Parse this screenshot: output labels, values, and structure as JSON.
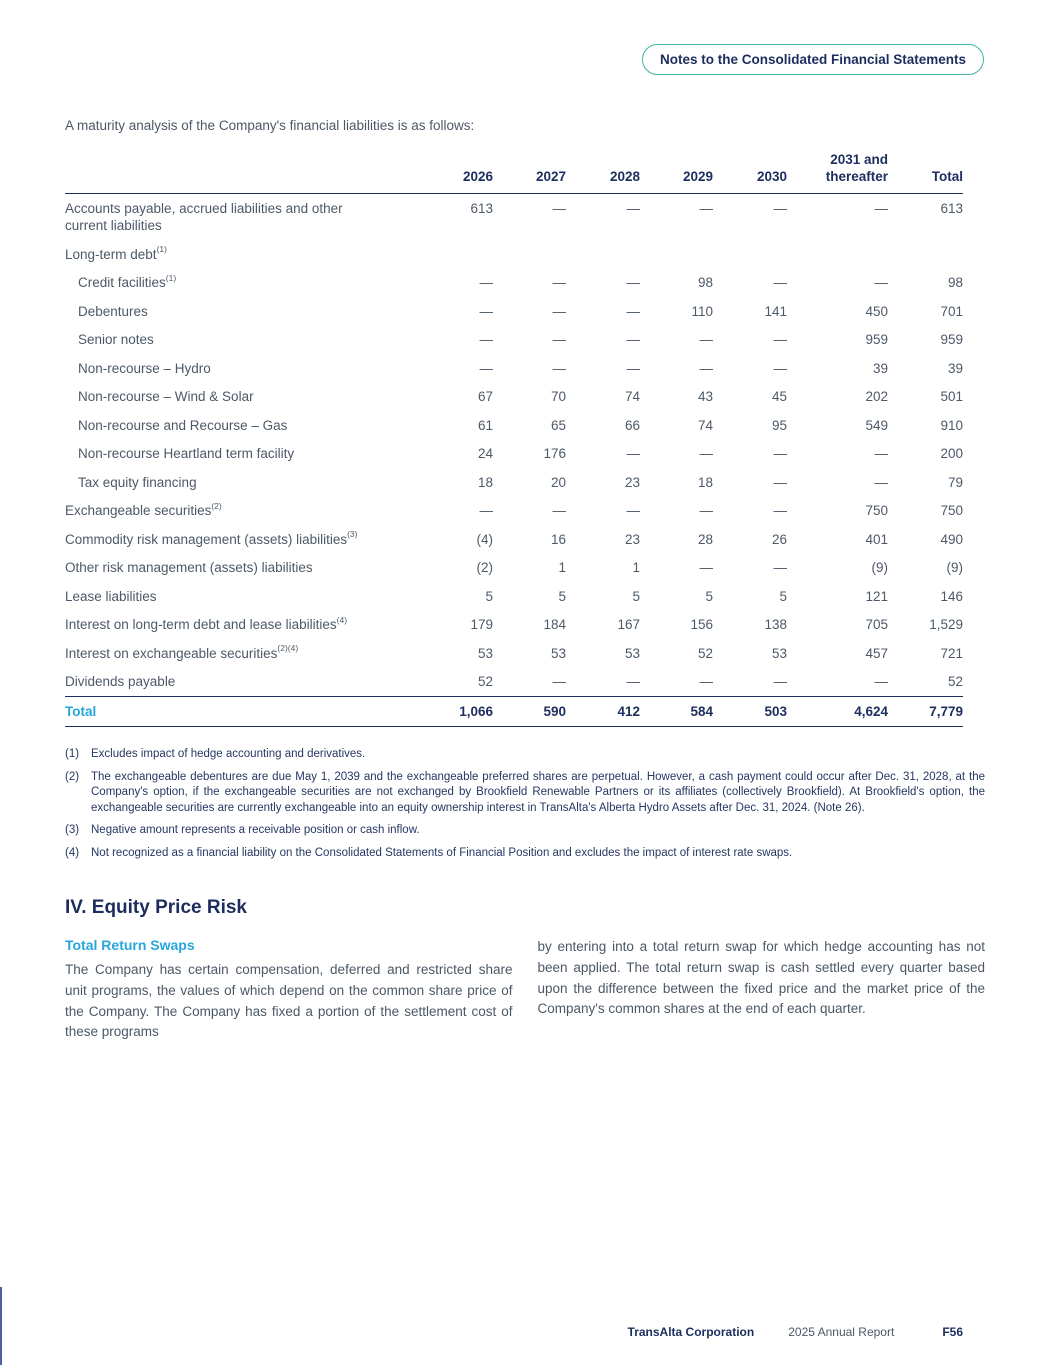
{
  "header": {
    "tag": "Notes to the Consolidated Financial Statements"
  },
  "intro": "A maturity analysis of the Company's financial liabilities is as follows:",
  "table": {
    "columns": [
      "2026",
      "2027",
      "2028",
      "2029",
      "2030",
      "2031 and thereafter",
      "Total"
    ],
    "rows": [
      {
        "label": "Accounts payable, accrued liabilities and other current liabilities",
        "sup": "",
        "indent": 0,
        "values": [
          "613",
          "—",
          "—",
          "—",
          "—",
          "—",
          "613"
        ]
      },
      {
        "label": "Long-term debt",
        "sup": "(1)",
        "indent": 0,
        "values": []
      },
      {
        "label": "Credit facilities",
        "sup": "(1)",
        "indent": 1,
        "values": [
          "—",
          "—",
          "—",
          "98",
          "—",
          "—",
          "98"
        ]
      },
      {
        "label": "Debentures",
        "sup": "",
        "indent": 1,
        "values": [
          "—",
          "—",
          "—",
          "110",
          "141",
          "450",
          "701"
        ]
      },
      {
        "label": "Senior notes",
        "sup": "",
        "indent": 1,
        "values": [
          "—",
          "—",
          "—",
          "—",
          "—",
          "959",
          "959"
        ]
      },
      {
        "label": "Non-recourse – Hydro",
        "sup": "",
        "indent": 1,
        "values": [
          "—",
          "—",
          "—",
          "—",
          "—",
          "39",
          "39"
        ]
      },
      {
        "label": "Non-recourse – Wind & Solar",
        "sup": "",
        "indent": 1,
        "values": [
          "67",
          "70",
          "74",
          "43",
          "45",
          "202",
          "501"
        ]
      },
      {
        "label": "Non-recourse and Recourse – Gas",
        "sup": "",
        "indent": 1,
        "values": [
          "61",
          "65",
          "66",
          "74",
          "95",
          "549",
          "910"
        ]
      },
      {
        "label": "Non-recourse Heartland term facility",
        "sup": "",
        "indent": 1,
        "values": [
          "24",
          "176",
          "—",
          "—",
          "—",
          "—",
          "200"
        ]
      },
      {
        "label": "Tax equity financing",
        "sup": "",
        "indent": 1,
        "values": [
          "18",
          "20",
          "23",
          "18",
          "—",
          "—",
          "79"
        ]
      },
      {
        "label": "Exchangeable securities",
        "sup": "(2)",
        "indent": 0,
        "values": [
          "—",
          "—",
          "—",
          "—",
          "—",
          "750",
          "750"
        ]
      },
      {
        "label": "Commodity risk management (assets) liabilities",
        "sup": "(3)",
        "indent": 0,
        "values": [
          "(4)",
          "16",
          "23",
          "28",
          "26",
          "401",
          "490"
        ]
      },
      {
        "label": "Other risk management (assets) liabilities",
        "sup": "",
        "indent": 0,
        "values": [
          "(2)",
          "1",
          "1",
          "—",
          "—",
          "(9)",
          "(9)"
        ]
      },
      {
        "label": "Lease liabilities",
        "sup": "",
        "indent": 0,
        "values": [
          "5",
          "5",
          "5",
          "5",
          "5",
          "121",
          "146"
        ]
      },
      {
        "label": "Interest on long-term debt and lease liabilities",
        "sup": "(4)",
        "indent": 0,
        "values": [
          "179",
          "184",
          "167",
          "156",
          "138",
          "705",
          "1,529"
        ]
      },
      {
        "label": "Interest on exchangeable securities",
        "sup": "(2)(4)",
        "indent": 0,
        "values": [
          "53",
          "53",
          "53",
          "52",
          "53",
          "457",
          "721"
        ]
      },
      {
        "label": "Dividends payable",
        "sup": "",
        "indent": 0,
        "values": [
          "52",
          "—",
          "—",
          "—",
          "—",
          "—",
          "52"
        ]
      }
    ],
    "total_row": {
      "label": "Total",
      "values": [
        "1,066",
        "590",
        "412",
        "584",
        "503",
        "4,624",
        "7,779"
      ]
    }
  },
  "footnotes": [
    {
      "num": "(1)",
      "text": "Excludes impact of hedge accounting and derivatives."
    },
    {
      "num": "(2)",
      "text": "The exchangeable debentures are due May 1, 2039 and the exchangeable preferred shares are perpetual. However, a cash payment could occur after Dec. 31, 2028, at the Company's option, if the exchangeable securities are not exchanged by Brookfield Renewable Partners or its affiliates (collectively Brookfield). At Brookfield's option, the exchangeable securities are currently exchangeable into an equity ownership interest in TransAlta's Alberta Hydro Assets after Dec. 31, 2024. (Note 26)."
    },
    {
      "num": "(3)",
      "text": "Negative amount represents a receivable position or cash inflow."
    },
    {
      "num": "(4)",
      "text": "Not recognized as a financial liability on the Consolidated Statements of Financial Position and excludes the impact of interest rate swaps."
    }
  ],
  "section": {
    "heading": "IV. Equity Price Risk",
    "subheading": "Total Return Swaps",
    "left_text": "The Company has certain compensation, deferred and restricted share unit programs, the values of which depend on the common share price of the Company. The Company has fixed a portion of the settlement cost of these programs",
    "right_text": "by entering into a total return swap for which hedge accounting has not been applied. The total return swap is cash settled every quarter based upon the difference between the fixed price and the market price of the Company's common shares at the end of each quarter."
  },
  "footer": {
    "company": "TransAlta Corporation",
    "report": "2025 Annual Report",
    "page_number": "F56"
  }
}
